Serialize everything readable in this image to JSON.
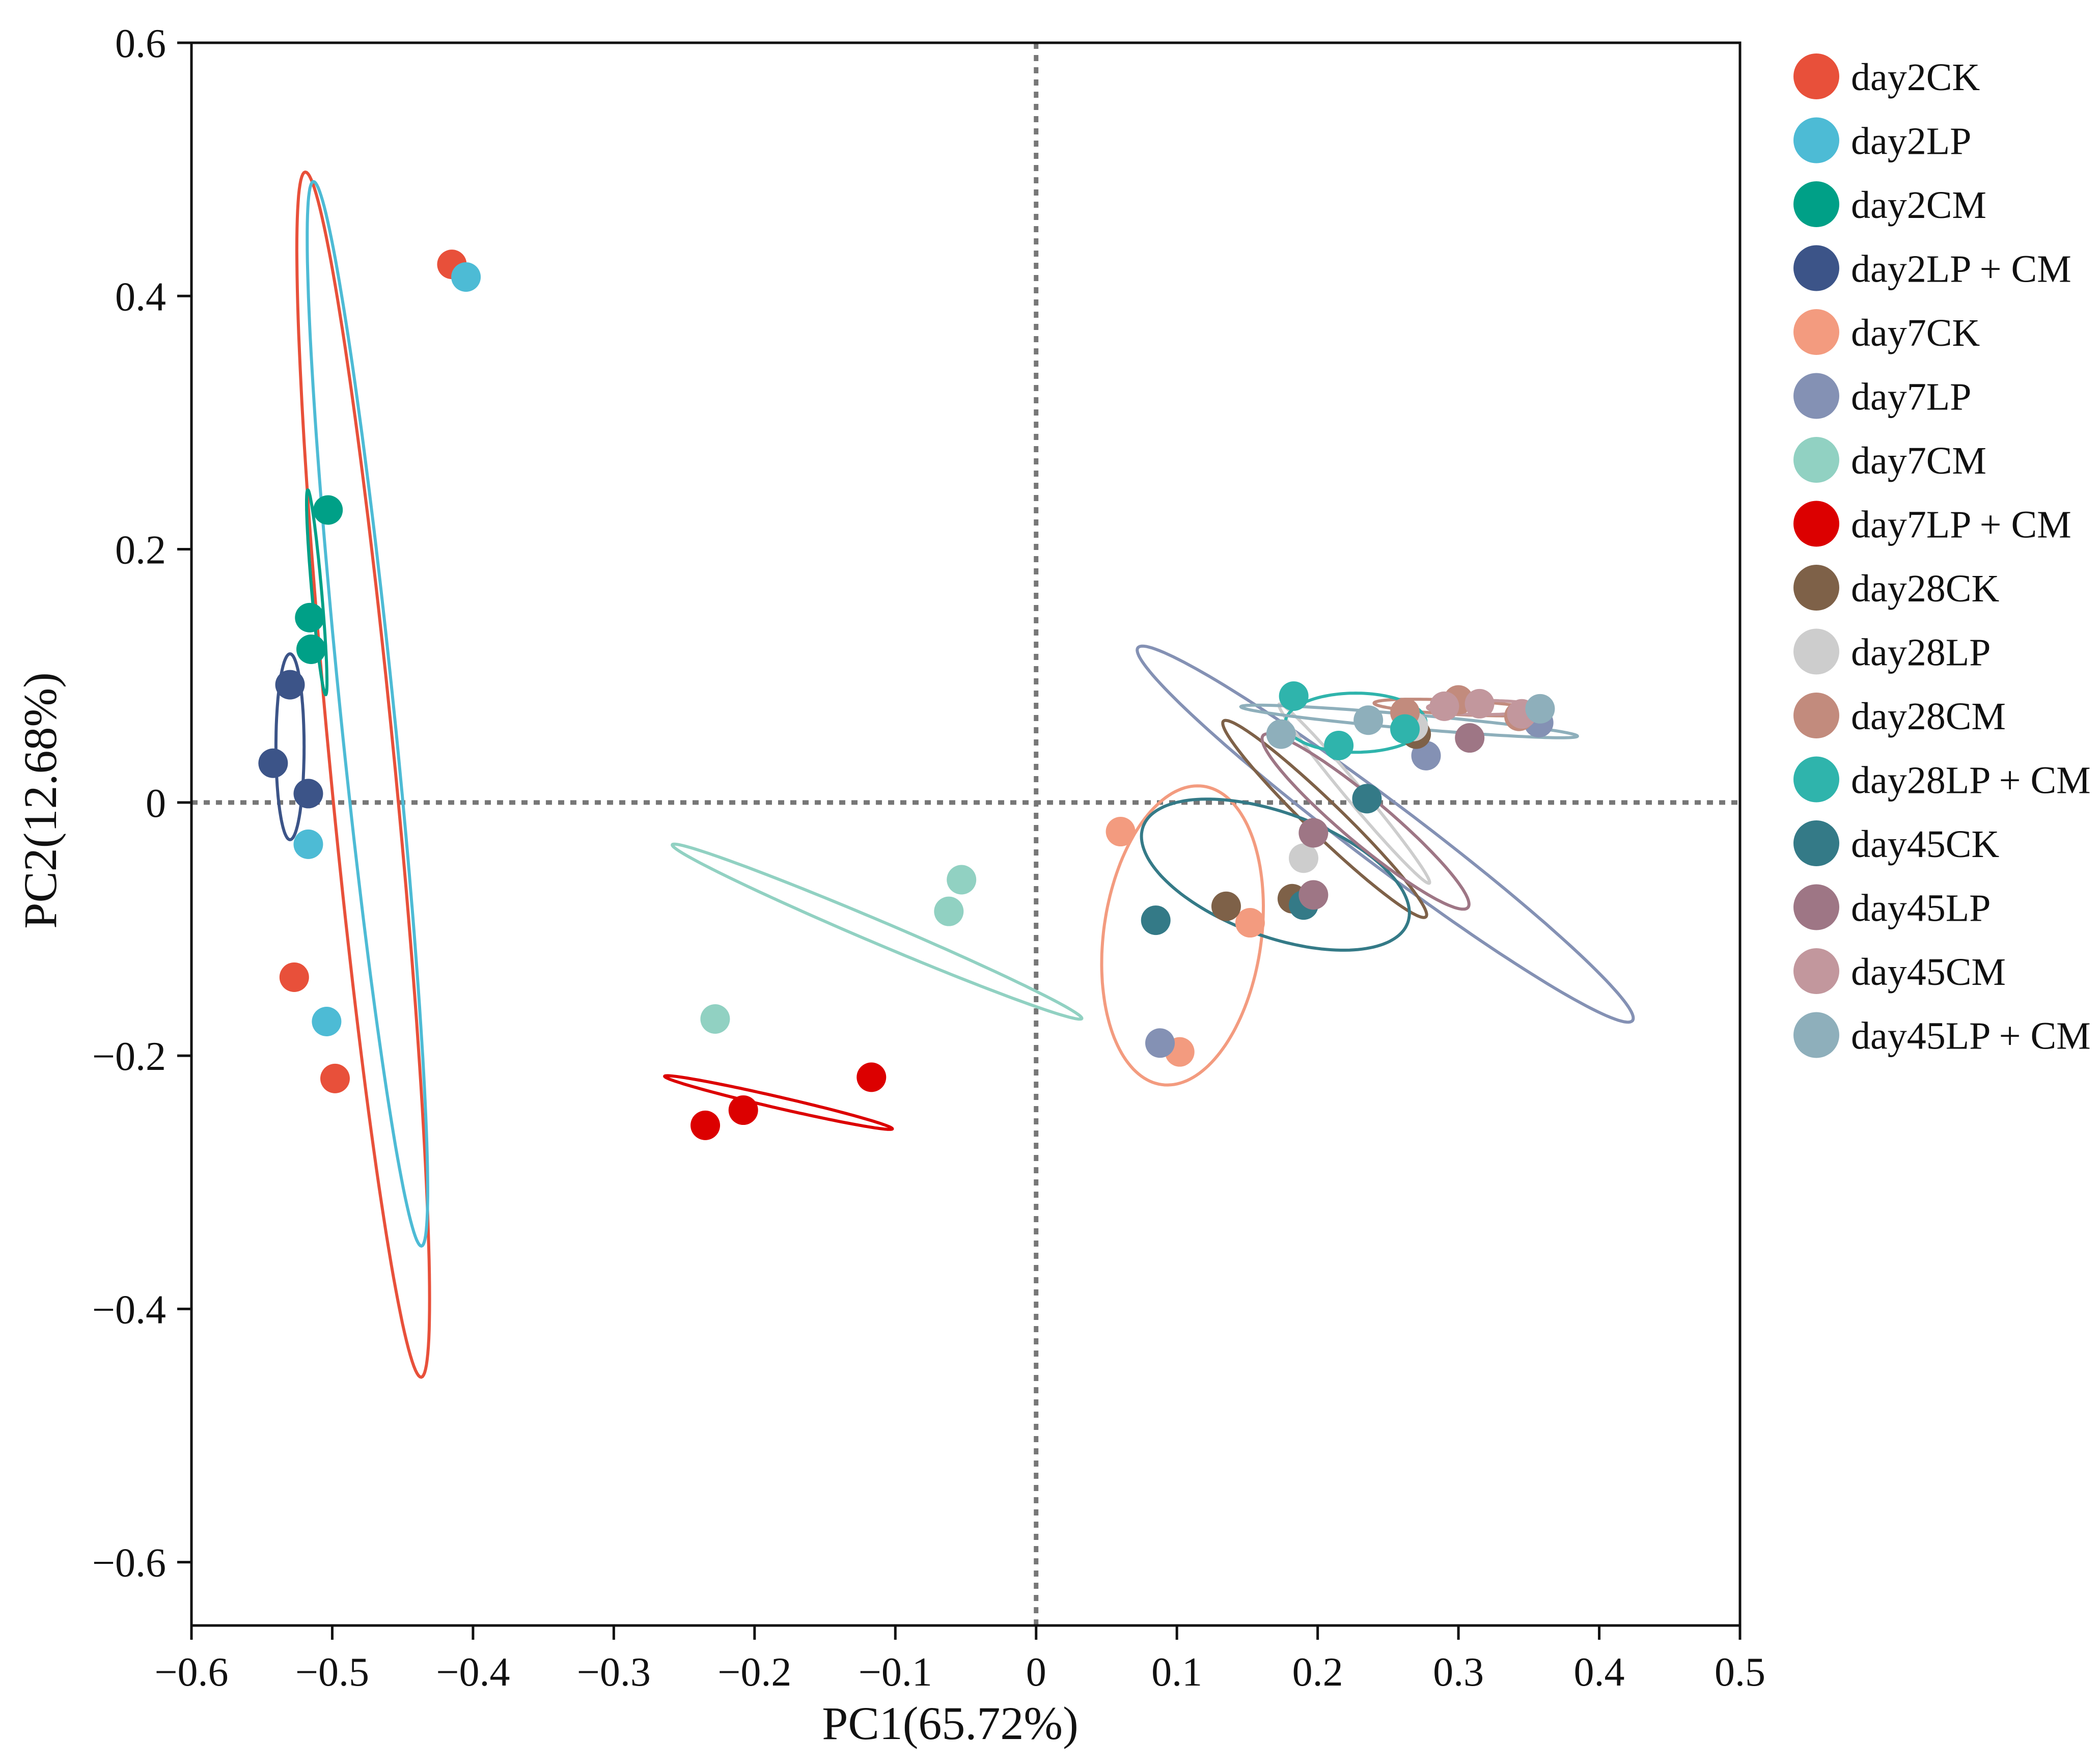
{
  "chart_data": {
    "type": "scatter",
    "xlabel": "PC1(65.72%)",
    "ylabel": "PC2(12.68%)",
    "xlim": [
      -0.6,
      0.5
    ],
    "ylim": [
      -0.65,
      0.6
    ],
    "xticks": [
      -0.6,
      -0.5,
      -0.4,
      -0.3,
      -0.2,
      -0.1,
      0,
      0.1,
      0.2,
      0.3,
      0.4,
      0.5
    ],
    "yticks": [
      -0.6,
      -0.4,
      -0.2,
      0,
      0.2,
      0.4,
      0.6
    ],
    "xtick_labels": [
      "−0.6",
      "−0.5",
      "−0.4",
      "−0.3",
      "−0.2",
      "−0.1",
      "0",
      "0.1",
      "0.2",
      "0.3",
      "0.4",
      "0.5"
    ],
    "ytick_labels": [
      "−0.6",
      "−0.4",
      "−0.2",
      "0",
      "0.2",
      "0.4",
      "0.6"
    ],
    "reference_lines": {
      "x": 0,
      "y": 0,
      "style": "dotted"
    },
    "legend_position": "right",
    "series": [
      {
        "name": "day2CK",
        "color": "#E8503A",
        "points": [
          [
            -0.415,
            0.425
          ],
          [
            -0.527,
            -0.138
          ],
          [
            -0.498,
            -0.218
          ]
        ],
        "ellipse": {
          "cx": -0.478,
          "cy": 0.022,
          "rx": 0.023,
          "ry": 0.43,
          "angle": 5.5
        }
      },
      {
        "name": "day2LP",
        "color": "#4DBBD5",
        "points": [
          [
            -0.405,
            0.415
          ],
          [
            -0.517,
            -0.033
          ],
          [
            -0.504,
            -0.173
          ]
        ],
        "ellipse": {
          "cx": -0.475,
          "cy": 0.07,
          "rx": 0.019,
          "ry": 0.38,
          "angle": 5.8
        }
      },
      {
        "name": "day2CM",
        "color": "#00A087",
        "points": [
          [
            -0.503,
            0.231
          ],
          [
            -0.516,
            0.146
          ],
          [
            -0.515,
            0.121
          ]
        ],
        "ellipse": {
          "cx": -0.511,
          "cy": 0.166,
          "rx": 0.0035,
          "ry": 0.073,
          "angle": 5.0
        }
      },
      {
        "name": "day2LP + CM",
        "color": "#3C5488",
        "points": [
          [
            -0.53,
            0.093
          ],
          [
            -0.542,
            0.031
          ],
          [
            -0.517,
            0.007
          ]
        ],
        "ellipse": {
          "cx": -0.53,
          "cy": 0.044,
          "rx": 0.01,
          "ry": 0.066,
          "angle": 0
        }
      },
      {
        "name": "day7CK",
        "color": "#F39B7F",
        "points": [
          [
            0.06,
            -0.023
          ],
          [
            0.102,
            -0.197
          ],
          [
            0.152,
            -0.095
          ]
        ],
        "ellipse": {
          "cx": 0.104,
          "cy": -0.105,
          "rx": 0.056,
          "ry": 0.107,
          "angle": -8
        }
      },
      {
        "name": "day7LP",
        "color": "#8491B4",
        "points": [
          [
            0.088,
            -0.19
          ],
          [
            0.277,
            0.037
          ],
          [
            0.357,
            0.063
          ]
        ],
        "ellipse": {
          "cx": 0.248,
          "cy": -0.025,
          "rx": 0.22,
          "ry": 0.022,
          "angle": -37
        }
      },
      {
        "name": "day7CM",
        "color": "#91D1C2",
        "points": [
          [
            -0.228,
            -0.171
          ],
          [
            -0.062,
            -0.086
          ],
          [
            -0.053,
            -0.061
          ]
        ],
        "ellipse": {
          "cx": -0.113,
          "cy": -0.102,
          "rx": 0.158,
          "ry": 0.008,
          "angle": -23
        }
      },
      {
        "name": "day7LP + CM",
        "color": "#DC0000",
        "points": [
          [
            -0.235,
            -0.255
          ],
          [
            -0.208,
            -0.243
          ],
          [
            -0.117,
            -0.217
          ]
        ],
        "ellipse": {
          "cx": -0.183,
          "cy": -0.237,
          "rx": 0.083,
          "ry": 0.004,
          "angle": -13
        }
      },
      {
        "name": "day28CK",
        "color": "#7E6148",
        "points": [
          [
            0.135,
            -0.082
          ],
          [
            0.182,
            -0.076
          ],
          [
            0.27,
            0.054
          ]
        ],
        "ellipse": {
          "cx": 0.205,
          "cy": -0.013,
          "rx": 0.1,
          "ry": 0.012,
          "angle": -44
        }
      },
      {
        "name": "day28LP",
        "color": "#CDCDCD",
        "points": [
          [
            0.19,
            -0.044
          ],
          [
            0.268,
            0.06
          ]
        ],
        "ellipse": {
          "cx": 0.226,
          "cy": 0.007,
          "rx": 0.083,
          "ry": 0.006,
          "angle": -50
        }
      },
      {
        "name": "day28CM",
        "color": "#C28B7D",
        "points": [
          [
            0.262,
            0.071
          ],
          [
            0.3,
            0.081
          ],
          [
            0.343,
            0.068
          ]
        ],
        "ellipse": {
          "cx": 0.3,
          "cy": 0.075,
          "rx": 0.06,
          "ry": 0.005,
          "angle": -3
        }
      },
      {
        "name": "day28LP + CM",
        "color": "#2FB4AC",
        "points": [
          [
            0.183,
            0.084
          ],
          [
            0.215,
            0.045
          ],
          [
            0.262,
            0.058
          ]
        ],
        "ellipse": {
          "cx": 0.227,
          "cy": 0.063,
          "rx": 0.05,
          "ry": 0.021,
          "angle": 0
        }
      },
      {
        "name": "day45CK",
        "color": "#347A87",
        "points": [
          [
            0.085,
            -0.093
          ],
          [
            0.19,
            -0.081
          ],
          [
            0.235,
            0.003
          ]
        ],
        "ellipse": {
          "cx": 0.17,
          "cy": -0.057,
          "rx": 0.1,
          "ry": 0.044,
          "angle": -20
        }
      },
      {
        "name": "day45LP",
        "color": "#9E7685",
        "points": [
          [
            0.197,
            -0.024
          ],
          [
            0.197,
            -0.073
          ],
          [
            0.308,
            0.051
          ]
        ],
        "ellipse": {
          "cx": 0.234,
          "cy": -0.015,
          "rx": 0.095,
          "ry": 0.016,
          "angle": -40
        }
      },
      {
        "name": "day45CM",
        "color": "#C2979D",
        "points": [
          [
            0.29,
            0.076
          ],
          [
            0.315,
            0.078
          ],
          [
            0.345,
            0.07
          ]
        ],
        "ellipse": {
          "cx": 0.318,
          "cy": 0.075,
          "rx": 0.04,
          "ry": 0.005,
          "angle": 0
        }
      },
      {
        "name": "day45LP + CM",
        "color": "#8EAFBB",
        "points": [
          [
            0.174,
            0.054
          ],
          [
            0.236,
            0.065
          ],
          [
            0.358,
            0.074
          ]
        ],
        "ellipse": {
          "cx": 0.265,
          "cy": 0.064,
          "rx": 0.12,
          "ry": 0.005,
          "angle": -5
        }
      }
    ]
  }
}
